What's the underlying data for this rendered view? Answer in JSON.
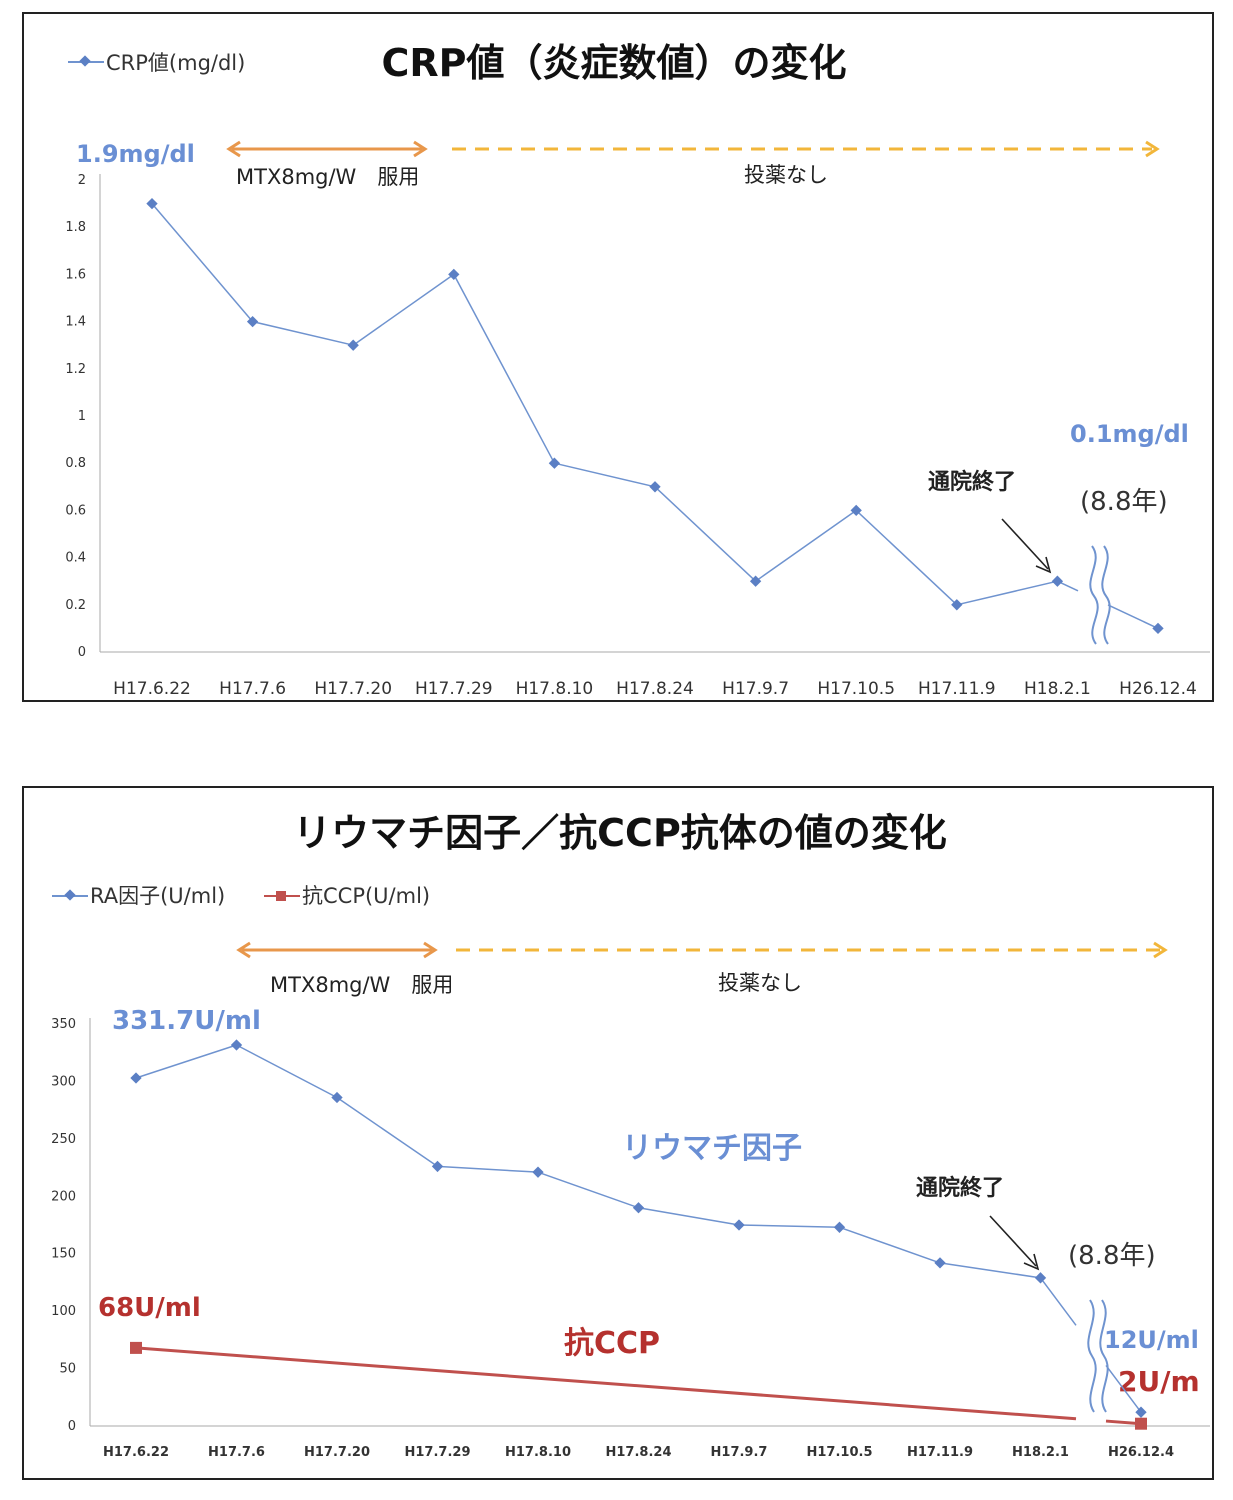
{
  "colors": {
    "blue_series": "#6f93cf",
    "red_series": "#c0504d",
    "orange_arrow": "#e8974b",
    "yellow_arrow": "#f2b63a",
    "blue_text": "#6a8fd4",
    "red_text": "#b5312e"
  },
  "chart_data": [
    {
      "type": "line",
      "title": "CRP値（炎症数値）の変化",
      "categories": [
        "H17.6.22",
        "H17.7.6",
        "H17.7.20",
        "H17.7.29",
        "H17.8.10",
        "H17.8.24",
        "H17.9.7",
        "H17.10.5",
        "H17.11.9",
        "H18.2.1",
        "H26.12.4"
      ],
      "series": [
        {
          "name": "CRP値(mg/dl)",
          "values": [
            1.9,
            1.4,
            1.3,
            1.6,
            0.8,
            0.7,
            0.3,
            0.6,
            0.2,
            0.3,
            0.1
          ]
        }
      ],
      "ylim": [
        0,
        2
      ],
      "yticks": [
        "0",
        "0.2",
        "0.4",
        "0.6",
        "0.8",
        "1",
        "1.2",
        "1.4",
        "1.6",
        "1.8",
        "2"
      ],
      "xlabel": "",
      "ylabel": "",
      "legend": "top-left",
      "annotations": {
        "start_value": "1.9mg/dl",
        "end_value": "0.1mg/dl",
        "mtx": "MTX8mg/W　服用",
        "no_medication": "投薬なし",
        "discharge": "通院終了",
        "years": "(8.8年)"
      }
    },
    {
      "type": "line",
      "title": "リウマチ因子／抗CCP抗体の値の変化",
      "categories": [
        "H17.6.22",
        "H17.7.6",
        "H17.7.20",
        "H17.7.29",
        "H17.8.10",
        "H17.8.24",
        "H17.9.7",
        "H17.10.5",
        "H17.11.9",
        "H18.2.1",
        "H26.12.4"
      ],
      "series": [
        {
          "name": "RA因子(U/ml)",
          "values": [
            303,
            331.7,
            286,
            226,
            221,
            190,
            175,
            173,
            142,
            129,
            12
          ]
        },
        {
          "name": "抗CCP(U/ml)",
          "values": [
            68,
            null,
            null,
            null,
            null,
            null,
            null,
            null,
            null,
            null,
            2
          ]
        }
      ],
      "ylim": [
        0,
        350
      ],
      "yticks": [
        "0",
        "50",
        "100",
        "150",
        "200",
        "250",
        "300",
        "350"
      ],
      "xlabel": "",
      "ylabel": "",
      "legend": "top-left",
      "annotations": {
        "ra_peak": "331.7U/ml",
        "ccp_start": "68U/ml",
        "ra_end": "12U/ml",
        "ccp_end": "2U/m",
        "ra_label": "リウマチ因子",
        "ccp_label": "抗CCP",
        "mtx": "MTX8mg/W　服用",
        "no_medication": "投薬なし",
        "discharge": "通院終了",
        "years": "(8.8年)"
      }
    }
  ]
}
